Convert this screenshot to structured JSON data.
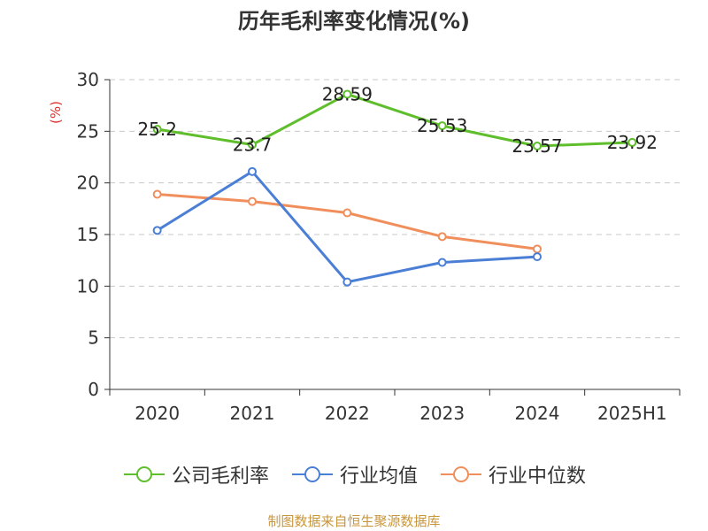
{
  "page": {
    "title": "历年毛利率变化情况(%)",
    "source": "制图数据来自恒生聚源数据库"
  },
  "chart_data": {
    "type": "line",
    "title": "历年毛利率变化情况(%)",
    "ylabel": "(%)",
    "ylim": [
      0,
      30
    ],
    "yticks": [
      0,
      5,
      10,
      15,
      20,
      25,
      30
    ],
    "categories": [
      "2020",
      "2021",
      "2022",
      "2023",
      "2024",
      "2025H1"
    ],
    "grid": true,
    "legend_position": "bottom",
    "series": [
      {
        "name": "公司毛利率",
        "color": "#5fbe2c",
        "values": [
          25.2,
          23.7,
          28.59,
          25.53,
          23.57,
          23.92
        ],
        "labels": [
          "25.2",
          "23.7",
          "28.59",
          "25.53",
          "23.57",
          "23.92"
        ]
      },
      {
        "name": "行业均值",
        "color": "#4b7fd6",
        "values": [
          15.4,
          21.1,
          10.4,
          12.3,
          12.85,
          null
        ]
      },
      {
        "name": "行业中位数",
        "color": "#f08e5c",
        "values": [
          18.9,
          18.2,
          17.1,
          14.8,
          13.6,
          null
        ]
      }
    ]
  }
}
